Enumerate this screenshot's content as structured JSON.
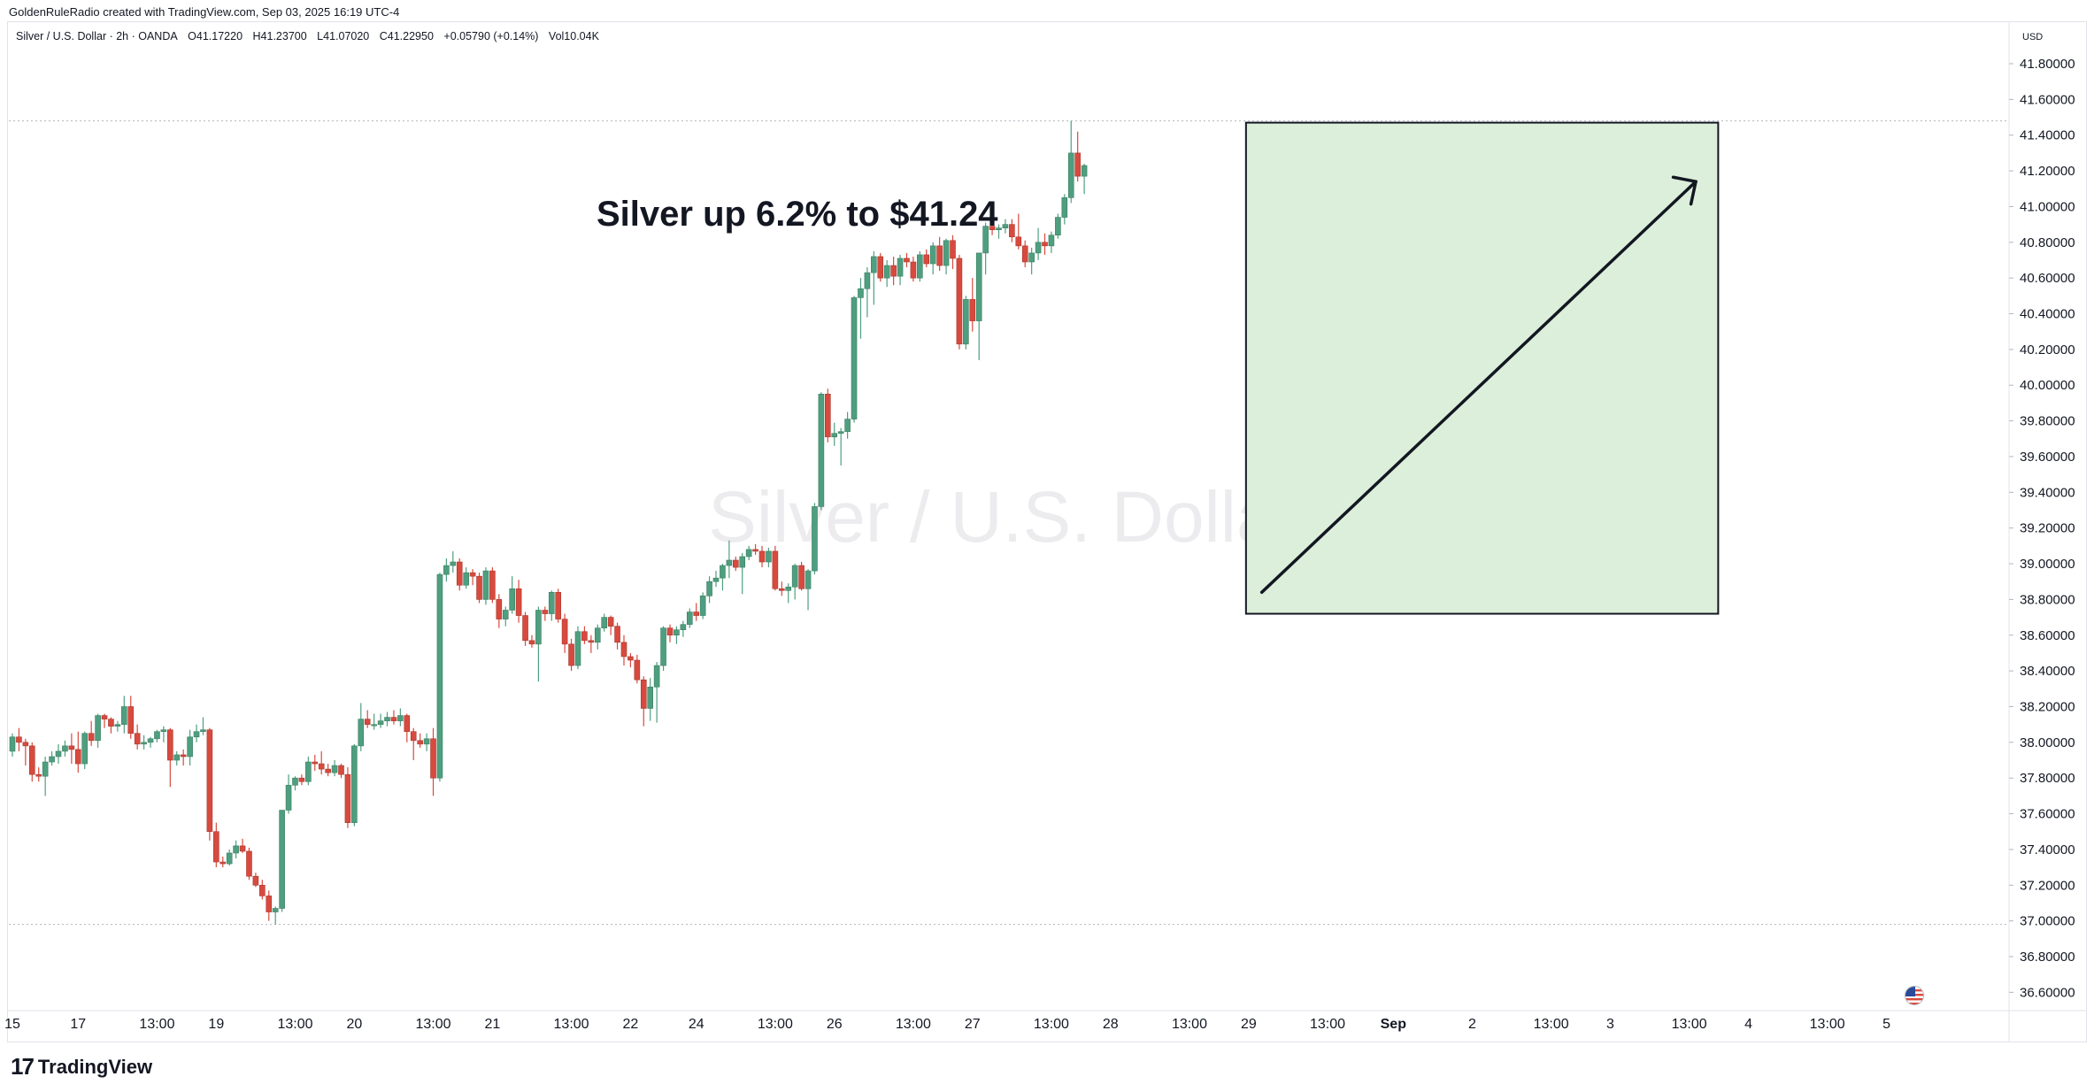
{
  "header": {
    "created_by": "GoldenRuleRadio created with TradingView.com, Sep 03, 2025 16:19 UTC-4"
  },
  "info": {
    "symbol": "Silver / U.S. Dollar · 2h · OANDA",
    "open": "O41.17220",
    "high": "H41.23700",
    "low": "L41.07020",
    "close": "C41.22950",
    "change": "+0.05790 (+0.14%)",
    "volume": "Vol10.04K"
  },
  "watermark": "Silver / U.S. Dollar",
  "annotation": "Silver up 6.2% to $41.24",
  "brand": "TradingView",
  "currency": "USD",
  "colors": {
    "up": "#4e9f7f",
    "down": "#d84a3e",
    "highlight_fill": "#dcefda",
    "highlight_border": "#131722",
    "grid_dotted": "#b2b5be"
  },
  "chart_data": {
    "type": "candlestick",
    "title": "Silver / U.S. Dollar · 2h · OANDA",
    "ylim": [
      36.5,
      41.9
    ],
    "y_ticks": [
      "41.80000",
      "41.60000",
      "41.40000",
      "41.20000",
      "41.00000",
      "40.80000",
      "40.60000",
      "40.40000",
      "40.20000",
      "40.00000",
      "39.80000",
      "39.60000",
      "39.40000",
      "39.20000",
      "39.00000",
      "38.80000",
      "38.60000",
      "38.40000",
      "38.20000",
      "38.00000",
      "37.80000",
      "37.60000",
      "37.40000",
      "37.20000",
      "37.00000",
      "36.80000",
      "36.60000"
    ],
    "x_ticks": [
      {
        "label": "15",
        "bar": 0
      },
      {
        "label": "17",
        "bar": 10
      },
      {
        "label": "13:00",
        "bar": 22
      },
      {
        "label": "19",
        "bar": 31
      },
      {
        "label": "13:00",
        "bar": 43
      },
      {
        "label": "20",
        "bar": 52
      },
      {
        "label": "13:00",
        "bar": 64
      },
      {
        "label": "21",
        "bar": 73
      },
      {
        "label": "13:00",
        "bar": 85
      },
      {
        "label": "22",
        "bar": 94
      },
      {
        "label": "24",
        "bar": 104
      },
      {
        "label": "13:00",
        "bar": 116
      },
      {
        "label": "26",
        "bar": 125
      },
      {
        "label": "13:00",
        "bar": 137
      },
      {
        "label": "27",
        "bar": 146
      },
      {
        "label": "13:00",
        "bar": 158
      },
      {
        "label": "28",
        "bar": 167
      },
      {
        "label": "13:00",
        "bar": 179
      },
      {
        "label": "29",
        "bar": 188
      },
      {
        "label": "13:00",
        "bar": 200
      },
      {
        "label": "Sep",
        "bar": 210
      },
      {
        "label": "2",
        "bar": 222
      },
      {
        "label": "13:00",
        "bar": 234
      },
      {
        "label": "3",
        "bar": 243
      },
      {
        "label": "13:00",
        "bar": 255
      },
      {
        "label": "4",
        "bar": 264
      },
      {
        "label": "13:00",
        "bar": 276
      },
      {
        "label": "5",
        "bar": 285
      }
    ],
    "reference_lines": [
      41.48,
      36.98
    ],
    "highlight_box": {
      "bar_from": 188,
      "bar_to": 259,
      "y_from": 38.72,
      "y_to": 41.47
    },
    "trend_arrow": {
      "from": {
        "bar": 190,
        "y": 38.84
      },
      "to": {
        "bar": 256,
        "y": 41.14
      }
    },
    "candles": [
      [
        37.95,
        38.05,
        37.92,
        38.03
      ],
      [
        38.03,
        38.08,
        37.95,
        38.0
      ],
      [
        38.0,
        38.02,
        37.87,
        37.98
      ],
      [
        37.98,
        38.0,
        37.78,
        37.82
      ],
      [
        37.82,
        37.86,
        37.78,
        37.81
      ],
      [
        37.81,
        37.92,
        37.7,
        37.89
      ],
      [
        37.89,
        37.95,
        37.87,
        37.92
      ],
      [
        37.92,
        37.99,
        37.88,
        37.95
      ],
      [
        37.95,
        38.01,
        37.92,
        37.98
      ],
      [
        37.98,
        38.05,
        37.88,
        37.96
      ],
      [
        37.96,
        38.06,
        37.83,
        37.88
      ],
      [
        37.88,
        38.06,
        37.85,
        38.05
      ],
      [
        38.05,
        38.12,
        37.98,
        38.01
      ],
      [
        38.01,
        38.16,
        37.97,
        38.15
      ],
      [
        38.15,
        38.16,
        38.08,
        38.13
      ],
      [
        38.13,
        38.14,
        38.05,
        38.09
      ],
      [
        38.09,
        38.12,
        38.06,
        38.1
      ],
      [
        38.1,
        38.26,
        38.05,
        38.2
      ],
      [
        38.2,
        38.26,
        38.02,
        38.05
      ],
      [
        38.05,
        38.1,
        37.96,
        37.99
      ],
      [
        37.99,
        38.04,
        37.96,
        38.0
      ],
      [
        38.0,
        38.03,
        37.97,
        38.02
      ],
      [
        38.02,
        38.07,
        38.0,
        38.06
      ],
      [
        38.06,
        38.09,
        38.0,
        38.07
      ],
      [
        38.07,
        38.08,
        37.75,
        37.9
      ],
      [
        37.9,
        37.95,
        37.87,
        37.93
      ],
      [
        37.93,
        37.96,
        37.87,
        37.92
      ],
      [
        37.92,
        38.07,
        37.87,
        38.03
      ],
      [
        38.03,
        38.1,
        38.0,
        38.06
      ],
      [
        38.06,
        38.14,
        38.04,
        38.07
      ],
      [
        38.07,
        38.08,
        37.45,
        37.5
      ],
      [
        37.5,
        37.55,
        37.3,
        37.33
      ],
      [
        37.33,
        37.36,
        37.3,
        37.32
      ],
      [
        37.32,
        37.4,
        37.31,
        37.38
      ],
      [
        37.38,
        37.45,
        37.35,
        37.42
      ],
      [
        37.42,
        37.46,
        37.38,
        37.39
      ],
      [
        37.39,
        37.41,
        37.23,
        37.25
      ],
      [
        37.25,
        37.27,
        37.19,
        37.2
      ],
      [
        37.2,
        37.23,
        37.12,
        37.14
      ],
      [
        37.14,
        37.17,
        37.0,
        37.05
      ],
      [
        37.05,
        37.08,
        36.98,
        37.07
      ],
      [
        37.07,
        37.62,
        37.05,
        37.62
      ],
      [
        37.62,
        37.82,
        37.6,
        37.76
      ],
      [
        37.76,
        37.81,
        37.73,
        37.8
      ],
      [
        37.8,
        37.82,
        37.76,
        37.78
      ],
      [
        37.78,
        37.92,
        37.76,
        37.89
      ],
      [
        37.89,
        37.93,
        37.84,
        37.88
      ],
      [
        37.88,
        37.95,
        37.82,
        37.85
      ],
      [
        37.85,
        37.88,
        37.81,
        37.83
      ],
      [
        37.83,
        37.9,
        37.81,
        37.87
      ],
      [
        37.87,
        37.88,
        37.8,
        37.82
      ],
      [
        37.82,
        37.86,
        37.52,
        37.55
      ],
      [
        37.55,
        37.99,
        37.53,
        37.98
      ],
      [
        37.98,
        38.22,
        37.95,
        38.13
      ],
      [
        38.13,
        38.18,
        38.08,
        38.1
      ],
      [
        38.1,
        38.16,
        38.07,
        38.1
      ],
      [
        38.1,
        38.16,
        38.08,
        38.12
      ],
      [
        38.12,
        38.17,
        38.09,
        38.14
      ],
      [
        38.14,
        38.18,
        38.1,
        38.12
      ],
      [
        38.12,
        38.19,
        38.09,
        38.15
      ],
      [
        38.15,
        38.16,
        38.0,
        38.06
      ],
      [
        38.06,
        38.08,
        37.9,
        38.01
      ],
      [
        38.01,
        38.05,
        37.97,
        37.99
      ],
      [
        37.99,
        38.05,
        37.95,
        38.02
      ],
      [
        38.02,
        38.08,
        37.7,
        37.8
      ],
      [
        37.8,
        38.95,
        37.78,
        38.94
      ],
      [
        38.94,
        39.03,
        38.9,
        38.99
      ],
      [
        38.99,
        39.07,
        38.95,
        39.01
      ],
      [
        39.01,
        39.03,
        38.85,
        38.88
      ],
      [
        38.88,
        38.98,
        38.86,
        38.95
      ],
      [
        38.95,
        38.97,
        38.88,
        38.93
      ],
      [
        38.93,
        38.95,
        38.78,
        38.8
      ],
      [
        38.8,
        38.98,
        38.77,
        38.96
      ],
      [
        38.96,
        38.98,
        38.78,
        38.8
      ],
      [
        38.8,
        38.83,
        38.64,
        38.69
      ],
      [
        38.69,
        38.76,
        38.65,
        38.74
      ],
      [
        38.74,
        38.93,
        38.72,
        38.86
      ],
      [
        38.86,
        38.91,
        38.67,
        38.71
      ],
      [
        38.71,
        38.73,
        38.54,
        38.57
      ],
      [
        38.57,
        38.6,
        38.53,
        38.55
      ],
      [
        38.55,
        38.76,
        38.34,
        38.74
      ],
      [
        38.74,
        38.76,
        38.68,
        38.72
      ],
      [
        38.72,
        38.85,
        38.68,
        38.84
      ],
      [
        38.84,
        38.86,
        38.67,
        38.69
      ],
      [
        38.69,
        38.72,
        38.5,
        38.55
      ],
      [
        38.55,
        38.58,
        38.4,
        38.43
      ],
      [
        38.43,
        38.65,
        38.41,
        38.62
      ],
      [
        38.62,
        38.65,
        38.55,
        38.57
      ],
      [
        38.57,
        38.6,
        38.5,
        38.56
      ],
      [
        38.56,
        38.66,
        38.52,
        38.64
      ],
      [
        38.64,
        38.72,
        38.62,
        38.7
      ],
      [
        38.7,
        38.71,
        38.6,
        38.65
      ],
      [
        38.65,
        38.67,
        38.52,
        38.56
      ],
      [
        38.56,
        38.6,
        38.43,
        38.48
      ],
      [
        38.48,
        38.5,
        38.42,
        38.46
      ],
      [
        38.46,
        38.49,
        38.33,
        38.35
      ],
      [
        38.35,
        38.37,
        38.09,
        38.19
      ],
      [
        38.19,
        38.36,
        38.12,
        38.31
      ],
      [
        38.31,
        38.45,
        38.11,
        38.43
      ],
      [
        38.43,
        38.65,
        38.4,
        38.64
      ],
      [
        38.64,
        38.66,
        38.56,
        38.6
      ],
      [
        38.6,
        38.65,
        38.55,
        38.63
      ],
      [
        38.63,
        38.68,
        38.59,
        38.66
      ],
      [
        38.66,
        38.75,
        38.64,
        38.73
      ],
      [
        38.73,
        38.78,
        38.68,
        38.71
      ],
      [
        38.71,
        38.84,
        38.69,
        38.82
      ],
      [
        38.82,
        38.93,
        38.78,
        38.9
      ],
      [
        38.9,
        38.96,
        38.87,
        38.92
      ],
      [
        38.92,
        39.0,
        38.85,
        38.99
      ],
      [
        38.99,
        39.13,
        38.92,
        39.02
      ],
      [
        39.02,
        39.04,
        38.96,
        38.98
      ],
      [
        38.98,
        39.06,
        38.83,
        39.04
      ],
      [
        39.04,
        39.1,
        39.02,
        39.08
      ],
      [
        39.08,
        39.11,
        39.05,
        39.07
      ],
      [
        39.07,
        39.1,
        38.98,
        39.01
      ],
      [
        39.01,
        39.09,
        38.98,
        39.07
      ],
      [
        39.07,
        39.1,
        38.85,
        38.86
      ],
      [
        38.86,
        38.9,
        38.82,
        38.85
      ],
      [
        38.85,
        38.89,
        38.78,
        38.87
      ],
      [
        38.87,
        39.0,
        38.8,
        38.99
      ],
      [
        38.99,
        39.01,
        38.85,
        38.86
      ],
      [
        38.86,
        38.97,
        38.74,
        38.96
      ],
      [
        38.96,
        39.34,
        38.94,
        39.32
      ],
      [
        39.32,
        39.96,
        39.3,
        39.95
      ],
      [
        39.95,
        39.98,
        39.68,
        39.71
      ],
      [
        39.71,
        39.79,
        39.66,
        39.73
      ],
      [
        39.73,
        39.76,
        39.55,
        39.74
      ],
      [
        39.74,
        39.85,
        39.7,
        39.81
      ],
      [
        39.81,
        40.5,
        39.79,
        40.49
      ],
      [
        40.49,
        40.6,
        40.26,
        40.54
      ],
      [
        40.54,
        40.66,
        40.38,
        40.63
      ],
      [
        40.63,
        40.75,
        40.45,
        40.72
      ],
      [
        40.72,
        40.74,
        40.58,
        40.6
      ],
      [
        40.6,
        40.7,
        40.55,
        40.67
      ],
      [
        40.67,
        40.72,
        40.56,
        40.61
      ],
      [
        40.61,
        40.73,
        40.56,
        40.71
      ],
      [
        40.71,
        40.74,
        40.66,
        40.69
      ],
      [
        40.69,
        40.72,
        40.58,
        40.6
      ],
      [
        40.6,
        40.75,
        40.58,
        40.73
      ],
      [
        40.73,
        40.76,
        40.66,
        40.68
      ],
      [
        40.68,
        40.8,
        40.62,
        40.78
      ],
      [
        40.78,
        40.83,
        40.64,
        40.67
      ],
      [
        40.67,
        40.82,
        40.62,
        40.81
      ],
      [
        40.81,
        40.84,
        40.65,
        40.71
      ],
      [
        40.71,
        40.73,
        40.2,
        40.23
      ],
      [
        40.23,
        40.5,
        40.2,
        40.48
      ],
      [
        40.48,
        40.6,
        40.3,
        40.36
      ],
      [
        40.36,
        40.74,
        40.14,
        40.74
      ],
      [
        40.74,
        40.91,
        40.62,
        40.89
      ],
      [
        40.89,
        40.94,
        40.84,
        40.87
      ],
      [
        40.87,
        40.9,
        40.82,
        40.88
      ],
      [
        40.88,
        40.93,
        40.85,
        40.9
      ],
      [
        40.9,
        40.93,
        40.8,
        40.83
      ],
      [
        40.83,
        40.96,
        40.76,
        40.78
      ],
      [
        40.78,
        40.81,
        40.66,
        40.69
      ],
      [
        40.69,
        40.77,
        40.62,
        40.74
      ],
      [
        40.74,
        40.88,
        40.7,
        40.8
      ],
      [
        40.8,
        40.85,
        40.73,
        40.78
      ],
      [
        40.78,
        40.86,
        40.74,
        40.84
      ],
      [
        40.84,
        40.96,
        40.82,
        40.94
      ],
      [
        40.94,
        41.07,
        40.9,
        41.05
      ],
      [
        41.05,
        41.48,
        41.02,
        41.3
      ],
      [
        41.3,
        41.42,
        41.14,
        41.17
      ],
      [
        41.17,
        41.24,
        41.07,
        41.23
      ]
    ]
  }
}
